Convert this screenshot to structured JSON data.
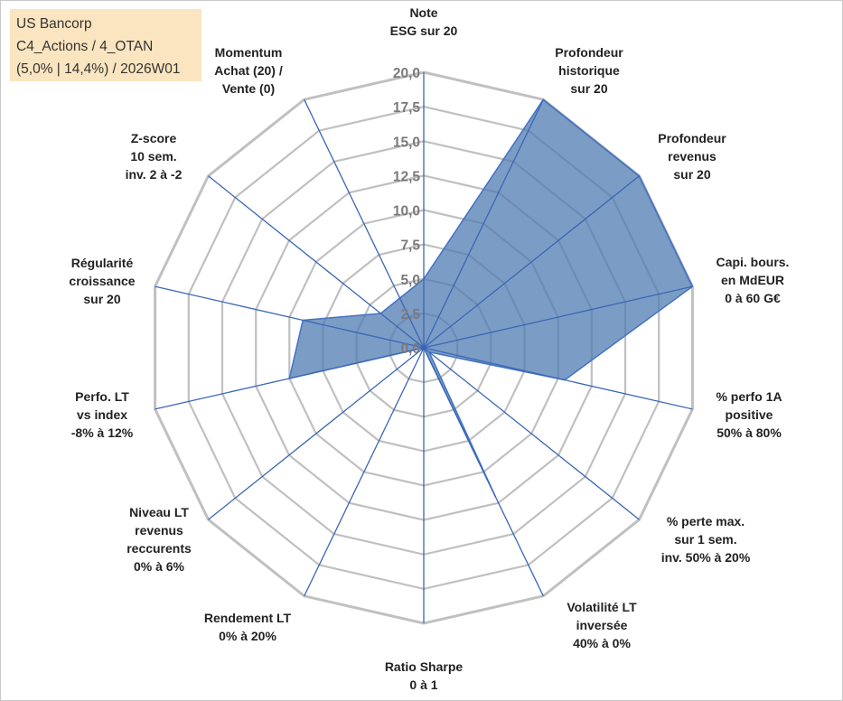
{
  "title_box": {
    "line1": "US Bancorp",
    "line2": "C4_Actions / 4_OTAN",
    "line3": "(5,0% | 14,4%) / 2026W01"
  },
  "colors": {
    "fill": "#4f7bb0",
    "fill_opacity": 0.75,
    "edge": "#4472c4",
    "spoke": "#3a66b7",
    "grid": "#c0c0c0",
    "tick_text": "#7a7a7a",
    "title_box_bg": "#fbe5c0"
  },
  "chart_data": {
    "type": "radar",
    "rlim": [
      0,
      20
    ],
    "rticks": [
      "0,0",
      "2,5",
      "5,0",
      "7,5",
      "10,0",
      "12,5",
      "15,0",
      "17,5",
      "20,0"
    ],
    "grid": true,
    "axes": [
      {
        "label": [
          "Note",
          "ESG sur 20"
        ],
        "value": 5.0
      },
      {
        "label": [
          "Profondeur",
          "historique",
          "sur 20"
        ],
        "value": 20.0
      },
      {
        "label": [
          "Profondeur",
          "revenus",
          "sur 20"
        ],
        "value": 20.0
      },
      {
        "label": [
          "Capi. bours.",
          "en MdEUR",
          "0 à 60 G€"
        ],
        "value": 20.0
      },
      {
        "label": [
          "% perfo 1A",
          "positive",
          "50% à 80%"
        ],
        "value": 10.5
      },
      {
        "label": [
          "% perte max.",
          "sur 1 sem.",
          "inv. 50% à 20%"
        ],
        "value": 0.5
      },
      {
        "label": [
          "Volatilité LT",
          "inversée",
          "40% à 0%"
        ],
        "value": 12.0
      },
      {
        "label": [
          "Ratio Sharpe",
          "0 à 1"
        ],
        "value": 0.0
      },
      {
        "label": [
          "Rendement LT",
          "0% à 20%"
        ],
        "value": 0.0
      },
      {
        "label": [
          "Niveau LT",
          "revenus",
          "reccurents",
          "0% à 6%"
        ],
        "value": 0.0
      },
      {
        "label": [
          "Perfo. LT",
          "vs index",
          "-8% à 12%"
        ],
        "value": 10.0
      },
      {
        "label": [
          "Régularité",
          "croissance",
          "sur 20"
        ],
        "value": 9.0
      },
      {
        "label": [
          "Z-score",
          "10 sem.",
          "inv. 2 à -2"
        ],
        "value": 4.0
      },
      {
        "label": [
          "Momentum",
          "Achat (20) /",
          "Vente (0)"
        ],
        "value": 4.0
      }
    ]
  }
}
